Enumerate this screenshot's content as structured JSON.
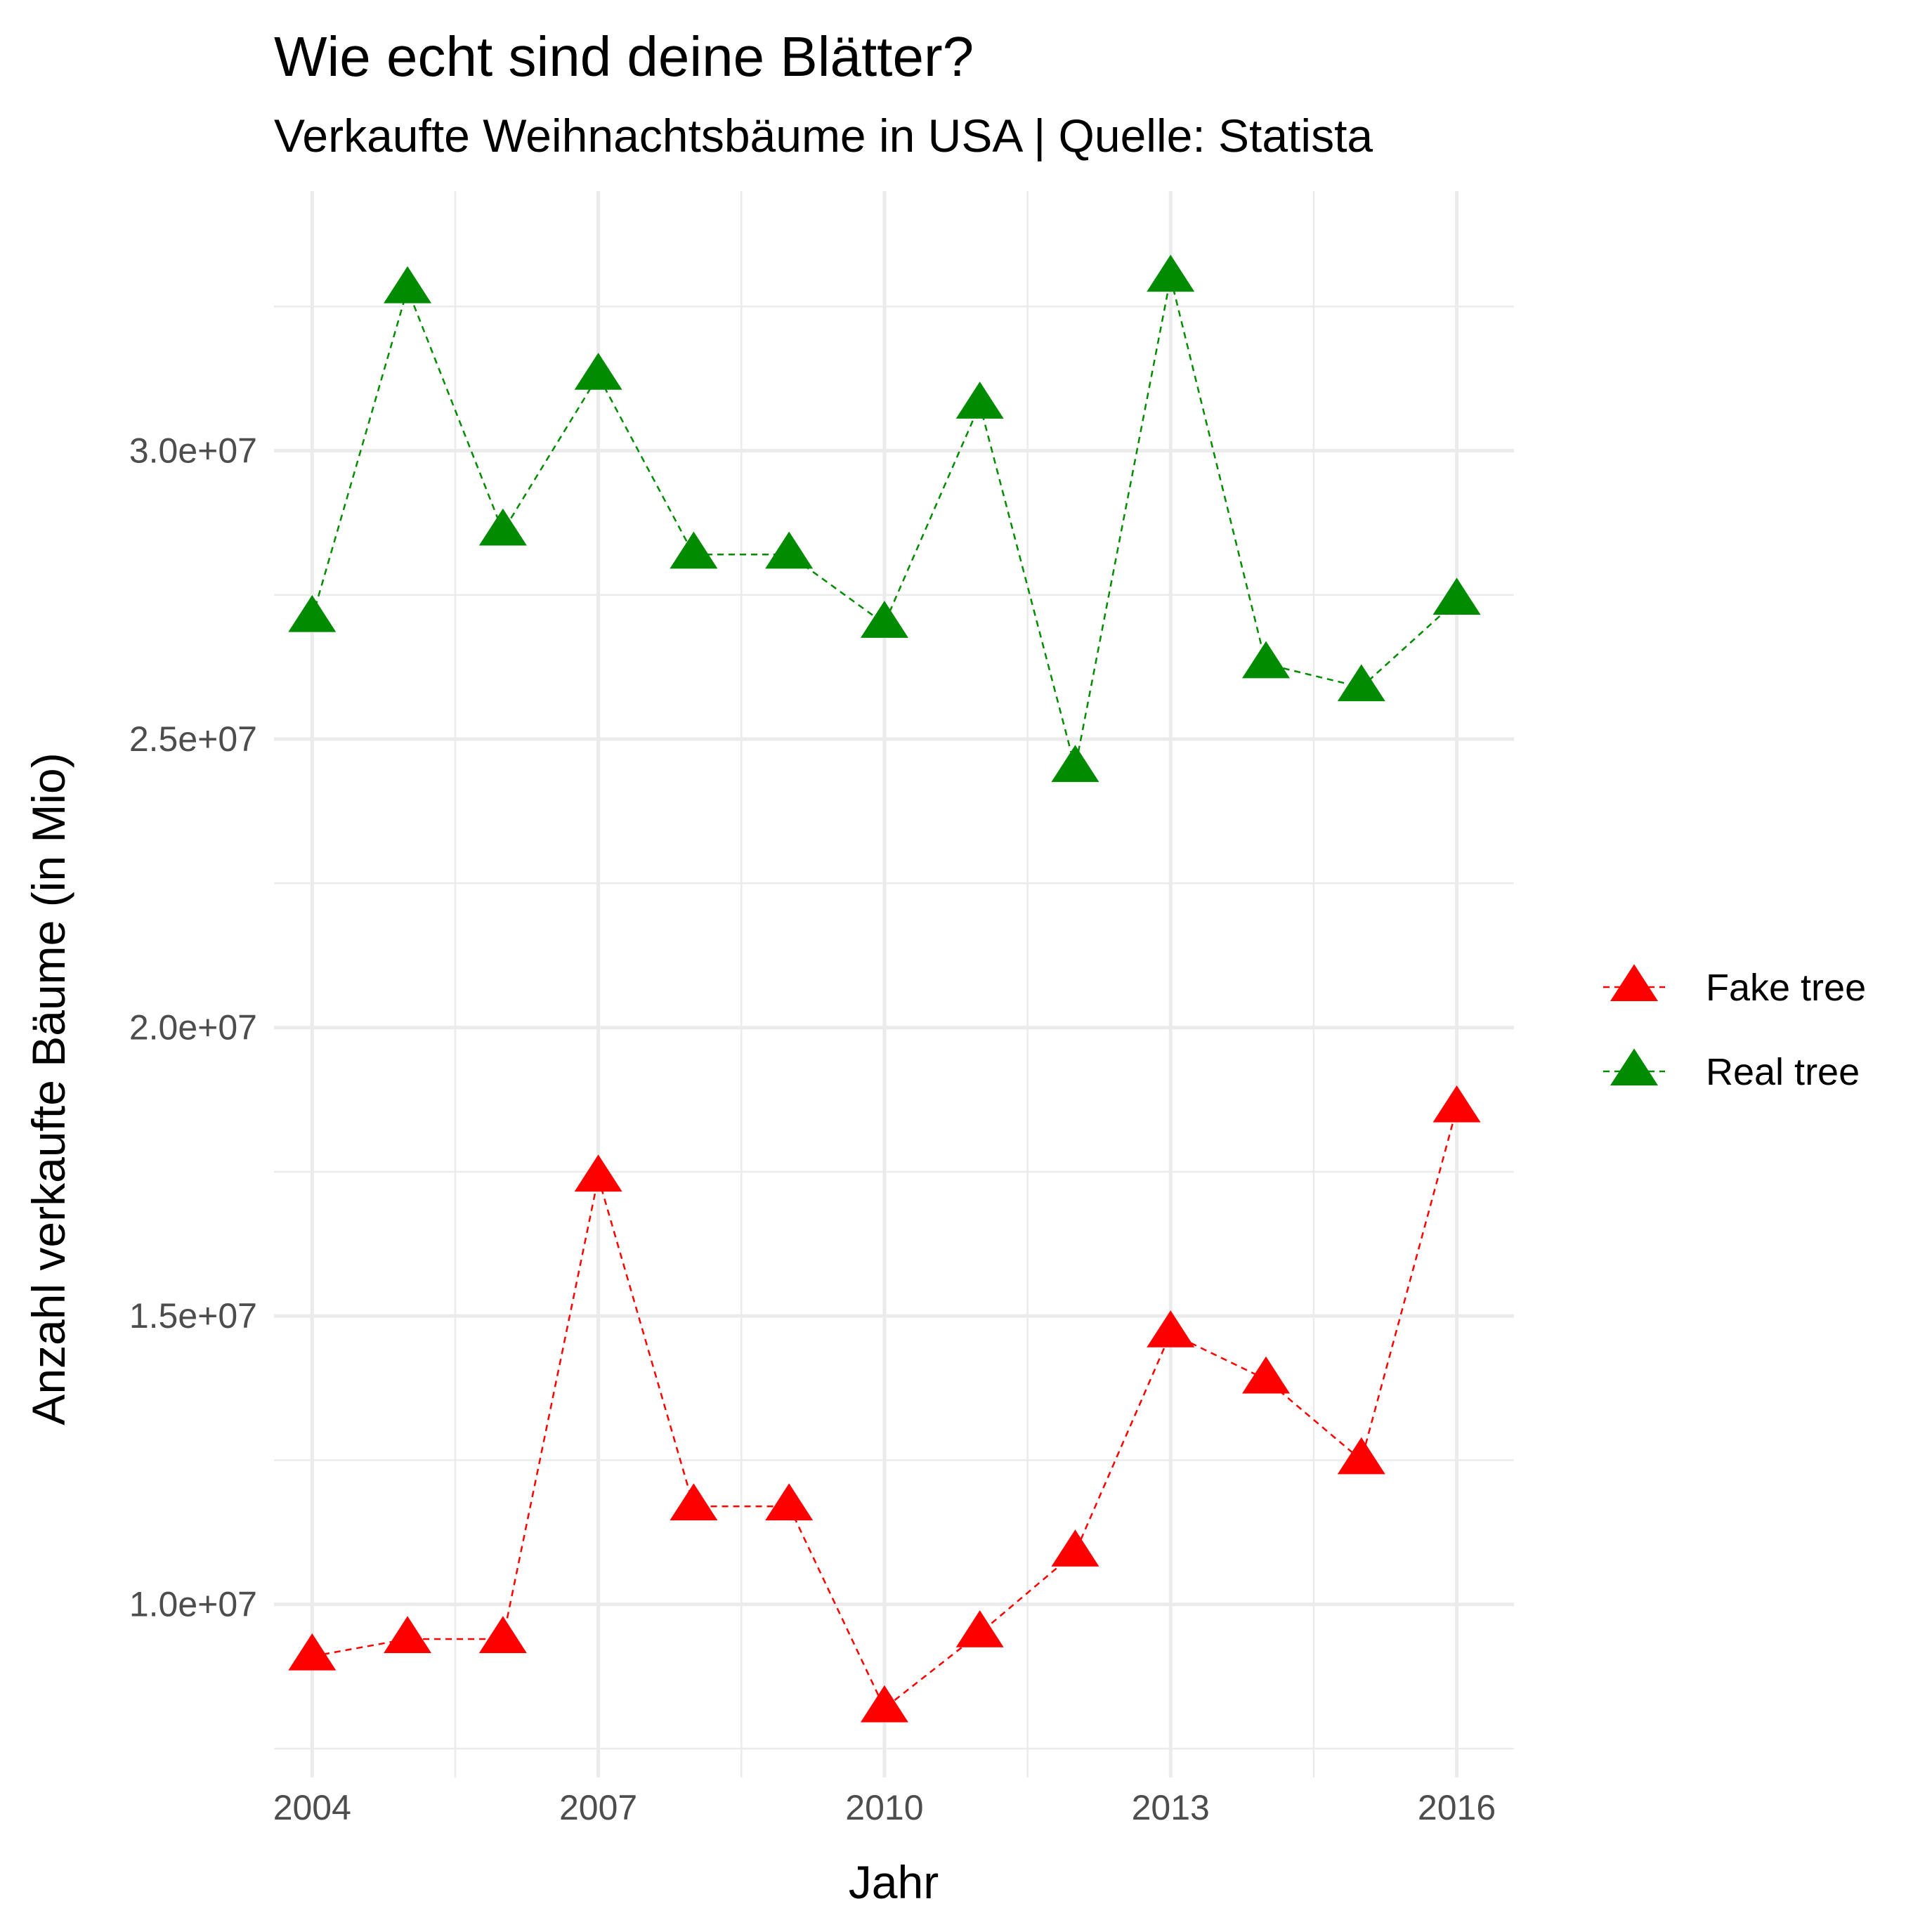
{
  "chart_data": {
    "type": "line",
    "title": "Wie echt sind deine Blätter?",
    "subtitle": "Verkaufte Weihnachtsbäume in USA | Quelle: Statista",
    "xlabel": "Jahr",
    "ylabel": "Anzahl verkaufte Bäume (in Mio)",
    "x": [
      2004,
      2005,
      2006,
      2007,
      2008,
      2009,
      2010,
      2011,
      2012,
      2013,
      2014,
      2015,
      2016
    ],
    "xlim": [
      2003.6,
      2016.6
    ],
    "ylim": [
      7000000,
      34500000
    ],
    "x_ticks": [
      2004,
      2007,
      2010,
      2013,
      2016
    ],
    "x_tick_labels": [
      "2004",
      "2007",
      "2010",
      "2013",
      "2016"
    ],
    "x_minor_ticks": [
      2005.5,
      2008.5,
      2011.5,
      2014.5
    ],
    "y_ticks": [
      10000000,
      15000000,
      20000000,
      25000000,
      30000000
    ],
    "y_tick_labels": [
      "1.0e+07",
      "1.5e+07",
      "2.0e+07",
      "2.5e+07",
      "3.0e+07"
    ],
    "y_minor_ticks": [
      7500000,
      12500000,
      17500000,
      22500000,
      27500000,
      32500000
    ],
    "grid": true,
    "legend_position": "right",
    "series": [
      {
        "name": "Fake tree",
        "color": "#ff0000",
        "marker": "triangle",
        "line_style": "dashed",
        "values": [
          9100000,
          9400000,
          9400000,
          17400000,
          11700000,
          11700000,
          8200000,
          9500000,
          10900000,
          14700000,
          13900000,
          12500000,
          18600000
        ]
      },
      {
        "name": "Real tree",
        "color": "#008b00",
        "marker": "triangle",
        "line_style": "dashed",
        "values": [
          27100000,
          32800000,
          28600000,
          31300000,
          28200000,
          28200000,
          27000000,
          30800000,
          24500000,
          33000000,
          26300000,
          25900000,
          27400000
        ]
      }
    ]
  }
}
